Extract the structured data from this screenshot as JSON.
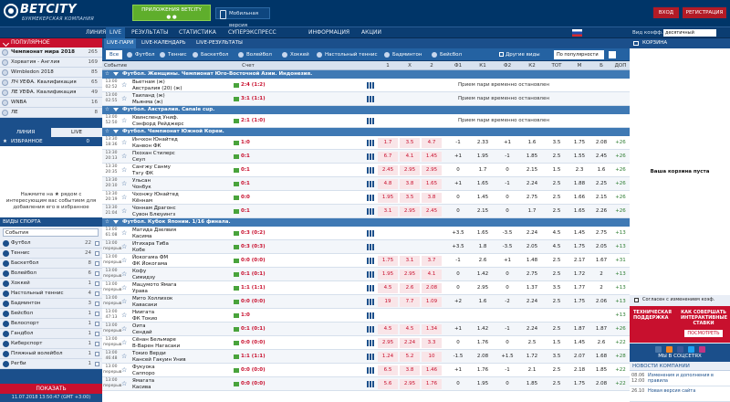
{
  "header": {
    "logo_main": "BETCITY",
    "logo_sub": "БУКМЕКЕРСКАЯ КОМПАНИЯ",
    "app_button": "ПРИЛОЖЕНИЯ BETCITY",
    "mobile_button": "Мобильная версия",
    "login": "ВХОД",
    "register": "РЕГИСТРАЦИЯ",
    "odds_view_label": "Вид коэфф.:",
    "odds_view_value": "десятичный"
  },
  "nav": [
    {
      "label": "ЛИНИЯ"
    },
    {
      "label": "LIVE"
    },
    {
      "label": "РЕЗУЛЬТАТЫ"
    },
    {
      "label": "СТАТИСТИКА"
    },
    {
      "label": "СУПЕРЭКСПРЕСС"
    },
    {
      "label": "ИНФОРМАЦИЯ"
    },
    {
      "label": "АКЦИИ"
    }
  ],
  "sidebar": {
    "popular_title": "ПОПУЛЯРНОЕ",
    "popular": [
      {
        "label": "Чемпионат мира 2018",
        "count": "265"
      },
      {
        "label": "Хорватия - Англия",
        "count": "169"
      },
      {
        "label": "Wimbledon 2018",
        "count": "85"
      },
      {
        "label": "ЛЧ УЕФА. Квалификация",
        "count": "65"
      },
      {
        "label": "ЛЕ УЕФА. Квалификация",
        "count": "49"
      },
      {
        "label": "WNBA",
        "count": "16"
      },
      {
        "label": "ЛЕ",
        "count": "8"
      }
    ],
    "tab_line": "ЛИНИЯ",
    "tab_live": "LIVE",
    "fav_title": "ИЗБРАННОЕ",
    "fav_count": "0",
    "fav_hint_1": "Нажмите на ★ рядом с",
    "fav_hint_2": "интересующим вас событием для",
    "fav_hint_3": "добавления его в избранное",
    "sports_title": "ВИДЫ СПОРТА",
    "sports_select": "События",
    "sports": [
      {
        "label": "Футбол",
        "count": "22"
      },
      {
        "label": "Теннис",
        "count": "24"
      },
      {
        "label": "Баскетбол",
        "count": "8"
      },
      {
        "label": "Волейбол",
        "count": "6"
      },
      {
        "label": "Хоккей",
        "count": "1"
      },
      {
        "label": "Настольный теннис",
        "count": "4"
      },
      {
        "label": "Бадминтон",
        "count": "3"
      },
      {
        "label": "Бейсбол",
        "count": "1"
      },
      {
        "label": "Велоспорт",
        "count": "1"
      },
      {
        "label": "Гандбол",
        "count": "1"
      },
      {
        "label": "Киберспорт",
        "count": "1"
      },
      {
        "label": "Пляжный волейбол",
        "count": "1"
      },
      {
        "label": "Регби",
        "count": "1"
      }
    ],
    "show_button": "ПОКАЗАТЬ",
    "datetime": "11.07.2018 13:50:47 (GMT +3:00)"
  },
  "main": {
    "subtabs": [
      "LIVE-ПАРИ",
      "LIVE-КАЛЕНДАРЬ",
      "LIVE-РЕЗУЛЬТАТЫ"
    ],
    "filters": [
      "Все",
      "Футбол",
      "Теннис",
      "Баскетбол",
      "Волейбол",
      "Хоккей",
      "Настольный теннис",
      "Бадминтон",
      "Бейсбол"
    ],
    "other_events": "Другие виды",
    "sort": "По популярности",
    "columns": [
      "Событие",
      "Счет",
      "1",
      "X",
      "2",
      "Ф1",
      "К1",
      "Ф2",
      "К2",
      "ТОТ",
      "М",
      "Б",
      "ДОП"
    ],
    "groups": [
      {
        "title": "Футбол. Женщины. Чемпионат Юго-Восточной Азии. Индонезия."
      },
      {
        "title": "Футбол. Австралия. Canale cup."
      },
      {
        "title": "Футбол. Чемпионат Южной Кореи."
      },
      {
        "title": "Футбол. Кубок Японии. 1/16 финала."
      }
    ],
    "suspend_text": "Прием пари временно остановлен",
    "events": [
      {
        "time": "13:00",
        "period": "02:52",
        "teams": [
          "Вьетнам (ж)",
          "Австралия (20) (ж)"
        ],
        "score": "2:4 (1:2)"
      },
      {
        "time": "13:00",
        "period": "02:55",
        "teams": [
          "Таиланд (ж)",
          "Мьянма (ж)"
        ],
        "score": "3:1 (1:1)"
      },
      {
        "time": "13:00",
        "period": "52:50",
        "teams": [
          "Квинсленд Униф.",
          "Сэнфорд Рейджерс"
        ],
        "score": "2:1 (1:0)"
      },
      {
        "time": "13:30",
        "period": "18:36",
        "teams": [
          "Инчхон Юнайтед",
          "Канвон ФК"
        ],
        "score": "1:0",
        "odds": [
          "1.7",
          "3.5",
          "4.7",
          "-1",
          "2.33",
          "+1",
          "1.6",
          "3.5",
          "1.75",
          "2.08",
          "+26"
        ]
      },
      {
        "time": "13:30",
        "period": "20:13",
        "teams": [
          "Пхохан Стилерс",
          "Сеул"
        ],
        "score": "0:1",
        "odds": [
          "6.7",
          "4.1",
          "1.45",
          "+1",
          "1.95",
          "-1",
          "1.85",
          "2.5",
          "1.55",
          "2.45",
          "+26"
        ]
      },
      {
        "time": "13:30",
        "period": "20:35",
        "teams": [
          "Сангжу Санму",
          "Тэгу ФК"
        ],
        "score": "0:1",
        "odds": [
          "2.45",
          "2.95",
          "2.95",
          "0",
          "1.7",
          "0",
          "2.15",
          "1.5",
          "2.3",
          "1.6",
          "+26"
        ]
      },
      {
        "time": "13:30",
        "period": "20:10",
        "teams": [
          "Ульсан",
          "Чонбук"
        ],
        "score": "0:1",
        "odds": [
          "4.8",
          "3.8",
          "1.65",
          "+1",
          "1.65",
          "-1",
          "2.24",
          "2.5",
          "1.88",
          "2.25",
          "+26"
        ]
      },
      {
        "time": "13:30",
        "period": "20:19",
        "teams": [
          "Чхонжу Юнайтед",
          "Кённам"
        ],
        "score": "0:0",
        "odds": [
          "1.95",
          "3.5",
          "3.8",
          "0",
          "1.45",
          "0",
          "2.75",
          "2.5",
          "1.66",
          "2.15",
          "+26"
        ]
      },
      {
        "time": "13:30",
        "period": "21:04",
        "teams": [
          "Чоннам Драгонс",
          "Сувон Блюуингз"
        ],
        "score": "0:1",
        "odds": [
          "3.1",
          "2.95",
          "2.45",
          "0",
          "2.15",
          "0",
          "1.7",
          "2.5",
          "1.65",
          "2.26",
          "+26"
        ]
      },
      {
        "time": "13:00",
        "period": "61:08",
        "teams": [
          "Матида Дзелвия",
          "Касима"
        ],
        "score": "0:3 (0:2)",
        "odds": [
          "",
          "",
          "",
          "+3.5",
          "1.65",
          "-3.5",
          "2.24",
          "4.5",
          "1.45",
          "2.75",
          "+13"
        ]
      },
      {
        "time": "13:00",
        "period": "перерыв",
        "teams": [
          "Итихара Тиба",
          "Кобе"
        ],
        "score": "0:3 (0:3)",
        "odds": [
          "",
          "",
          "",
          "+3.5",
          "1.8",
          "-3.5",
          "2.05",
          "4.5",
          "1.75",
          "2.05",
          "+13"
        ]
      },
      {
        "time": "13:00",
        "period": "перерыв",
        "teams": [
          "Йокогама ФМ",
          "ФК Йокогама"
        ],
        "score": "0:0 (0:0)",
        "odds": [
          "1.75",
          "3.1",
          "3.7",
          "-1",
          "2.6",
          "+1",
          "1.48",
          "2.5",
          "2.17",
          "1.67",
          "+31"
        ]
      },
      {
        "time": "13:00",
        "period": "перерыв",
        "teams": [
          "Кофу",
          "Симидзу"
        ],
        "score": "0:1 (0:1)",
        "odds": [
          "1.95",
          "2.95",
          "4.1",
          "0",
          "1.42",
          "0",
          "2.75",
          "2.5",
          "1.72",
          "2",
          "+13"
        ]
      },
      {
        "time": "13:00",
        "period": "перерыв",
        "teams": [
          "Мацумото Ямага",
          "Урава"
        ],
        "score": "1:1 (1:1)",
        "odds": [
          "4.5",
          "2.6",
          "2.08",
          "0",
          "2.95",
          "0",
          "1.37",
          "3.5",
          "1.77",
          "2",
          "+13"
        ]
      },
      {
        "time": "13:00",
        "period": "перерыв",
        "teams": [
          "Мито Холлихок",
          "Кавасаки"
        ],
        "score": "0:0 (0:0)",
        "odds": [
          "19",
          "7.7",
          "1.09",
          "+2",
          "1.6",
          "-2",
          "2.24",
          "2.5",
          "1.75",
          "2.06",
          "+13"
        ]
      },
      {
        "time": "13:00",
        "period": "47:13",
        "teams": [
          "Ниигата",
          "ФК Токио"
        ],
        "score": "1:0",
        "odds": [
          "",
          "",
          "",
          "",
          "",
          "",
          "",
          "",
          "",
          "",
          "+13"
        ]
      },
      {
        "time": "13:00",
        "period": "перерыв",
        "teams": [
          "Оита",
          "Сендай"
        ],
        "score": "0:1 (0:1)",
        "odds": [
          "4.5",
          "4.5",
          "1.34",
          "+1",
          "1.42",
          "-1",
          "2.24",
          "2.5",
          "1.87",
          "1.87",
          "+26"
        ]
      },
      {
        "time": "13:00",
        "period": "перерыв",
        "teams": [
          "Сёнан Бельмаре",
          "В-Варен Нагасаки"
        ],
        "score": "0:0 (0:0)",
        "odds": [
          "2.95",
          "2.24",
          "3.3",
          "0",
          "1.76",
          "0",
          "2.5",
          "1.5",
          "1.45",
          "2.6",
          "+22"
        ]
      },
      {
        "time": "13:00",
        "period": "46:48",
        "teams": [
          "Токио Верди",
          "Кансей Гакуин Унив"
        ],
        "score": "1:1 (1:1)",
        "odds": [
          "1.24",
          "5.2",
          "10",
          "-1.5",
          "2.08",
          "+1.5",
          "1.72",
          "3.5",
          "2.07",
          "1.68",
          "+28"
        ]
      },
      {
        "time": "13:00",
        "period": "перерыв",
        "teams": [
          "Фукуока",
          "Саппоро"
        ],
        "score": "0:0 (0:0)",
        "odds": [
          "6.5",
          "3.8",
          "1.46",
          "+1",
          "1.76",
          "-1",
          "2.1",
          "2.5",
          "2.18",
          "1.85",
          "+22"
        ]
      },
      {
        "time": "13:00",
        "period": "перерыв",
        "teams": [
          "Ямагата",
          "Касива"
        ],
        "score": "0:0 (0:0)",
        "odds": [
          "5.6",
          "2.95",
          "1.76",
          "0",
          "1.95",
          "0",
          "1.85",
          "2.5",
          "1.75",
          "2.08",
          "+22"
        ]
      }
    ]
  },
  "basket": {
    "title": "КОРЗИНА",
    "empty": "Ваша корзина пуста",
    "agree": "Согласен с изменением коэф.",
    "banner_left": "ТЕХНИЧЕСКАЯ ПОДДЕРЖКА",
    "banner_right": "КАК СОВЕРШАТЬ ИНТЕРАКТИВНЫЕ СТАВКИ",
    "banner_button": "ПОСМОТРЕТЬ",
    "social_title": "МЫ В СОЦСЕТЯХ",
    "news_title": "НОВОСТИ КОМПАНИИ",
    "news": [
      {
        "date": "08.06 12:00",
        "text": "Изменения и дополнения в правила"
      },
      {
        "date": "26.10",
        "text": "Новая версия сайта"
      }
    ]
  }
}
